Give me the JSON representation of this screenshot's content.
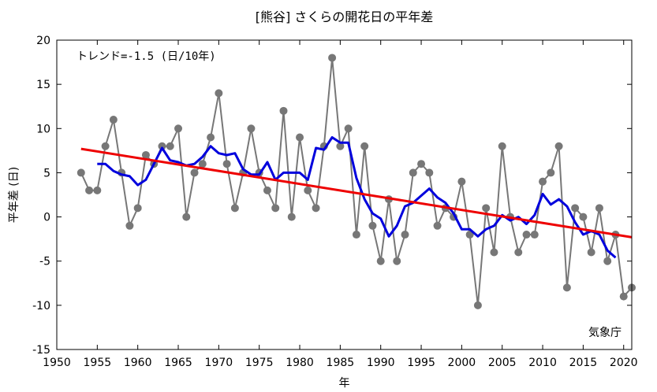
{
  "chart_data": {
    "type": "line",
    "title": "[熊谷] さくらの開花日の平年差",
    "xlabel": "年",
    "ylabel": "平年差 (日)",
    "xlim": [
      1950,
      2021
    ],
    "ylim": [
      -15,
      20
    ],
    "xticks": [
      1950,
      1955,
      1960,
      1965,
      1970,
      1975,
      1980,
      1985,
      1990,
      1995,
      2000,
      2005,
      2010,
      2015,
      2020
    ],
    "yticks": [
      -15,
      -10,
      -5,
      0,
      5,
      10,
      15,
      20
    ],
    "grid": false,
    "trend_label": "トレンド=-1.5 (日/10年)",
    "source": "気象庁",
    "colors": {
      "annual": "#777777",
      "moving_average": "#0000dd",
      "trend": "#ee0000"
    },
    "series": [
      {
        "x": [
          1953,
          1954,
          1955,
          1956,
          1957,
          1958,
          1959,
          1960,
          1961,
          1962,
          1963,
          1964,
          1965,
          1966,
          1967,
          1968,
          1969,
          1970,
          1971,
          1972,
          1973,
          1974,
          1975,
          1976,
          1977,
          1978,
          1979,
          1980,
          1981,
          1982,
          1983,
          1984,
          1985,
          1986,
          1987,
          1988,
          1989,
          1990,
          1991,
          1992,
          1993,
          1994,
          1995,
          1996,
          1997,
          1998,
          1999,
          2000,
          2001,
          2002,
          2003,
          2004,
          2005,
          2006,
          2007,
          2008,
          2009,
          2010,
          2011,
          2012,
          2013,
          2014,
          2015,
          2016,
          2017,
          2018,
          2019,
          2020,
          2021
        ],
        "values": [
          5,
          3,
          3,
          8,
          11,
          5,
          -1,
          1,
          7,
          6,
          8,
          8,
          10,
          0,
          5,
          6,
          9,
          14,
          6,
          1,
          5,
          10,
          5,
          3,
          1,
          12,
          0,
          9,
          3,
          1,
          8,
          18,
          8,
          10,
          -2,
          8,
          -1,
          -5,
          2,
          -5,
          -2,
          5,
          6,
          5,
          -1,
          1,
          0,
          4,
          -2,
          -10,
          1,
          -4,
          8,
          0,
          -4,
          -2,
          -2,
          4,
          5,
          8,
          -8,
          1,
          0,
          -4,
          1,
          -5,
          -2,
          -9,
          -8
        ]
      },
      {
        "x": [
          1955,
          1956,
          1957,
          1958,
          1959,
          1960,
          1961,
          1962,
          1963,
          1964,
          1965,
          1966,
          1967,
          1968,
          1969,
          1970,
          1971,
          1972,
          1973,
          1974,
          1975,
          1976,
          1977,
          1978,
          1979,
          1980,
          1981,
          1982,
          1983,
          1984,
          1985,
          1986,
          1987,
          1988,
          1989,
          1990,
          1991,
          1992,
          1993,
          1994,
          1995,
          1996,
          1997,
          1998,
          1999,
          2000,
          2001,
          2002,
          2003,
          2004,
          2005,
          2006,
          2007,
          2008,
          2009,
          2010,
          2011,
          2012,
          2013,
          2014,
          2015,
          2016,
          2017,
          2018,
          2019
        ],
        "values": [
          6,
          6,
          5.2,
          4.8,
          4.6,
          3.6,
          4.2,
          6,
          7.8,
          6.4,
          6.2,
          5.8,
          6,
          6.8,
          8,
          7.2,
          7,
          7.2,
          5.4,
          4.8,
          4.8,
          6.2,
          4.2,
          5,
          5,
          5,
          4.2,
          7.8,
          7.6,
          9,
          8.4,
          8.4,
          4.4,
          2,
          0.4,
          -0.2,
          -2.2,
          -1,
          1.2,
          1.6,
          2.4,
          3.2,
          2.2,
          1.6,
          0.4,
          -1.4,
          -1.4,
          -2.2,
          -1.4,
          -1,
          0.2,
          -0.4,
          0,
          -0.8,
          0.2,
          2.6,
          1.4,
          2,
          1.2,
          -0.6,
          -2,
          -1.6,
          -2,
          -3.8,
          -4.6
        ]
      },
      {
        "x": [
          1953,
          2021
        ],
        "values": [
          7.7,
          -2.3
        ]
      }
    ]
  }
}
